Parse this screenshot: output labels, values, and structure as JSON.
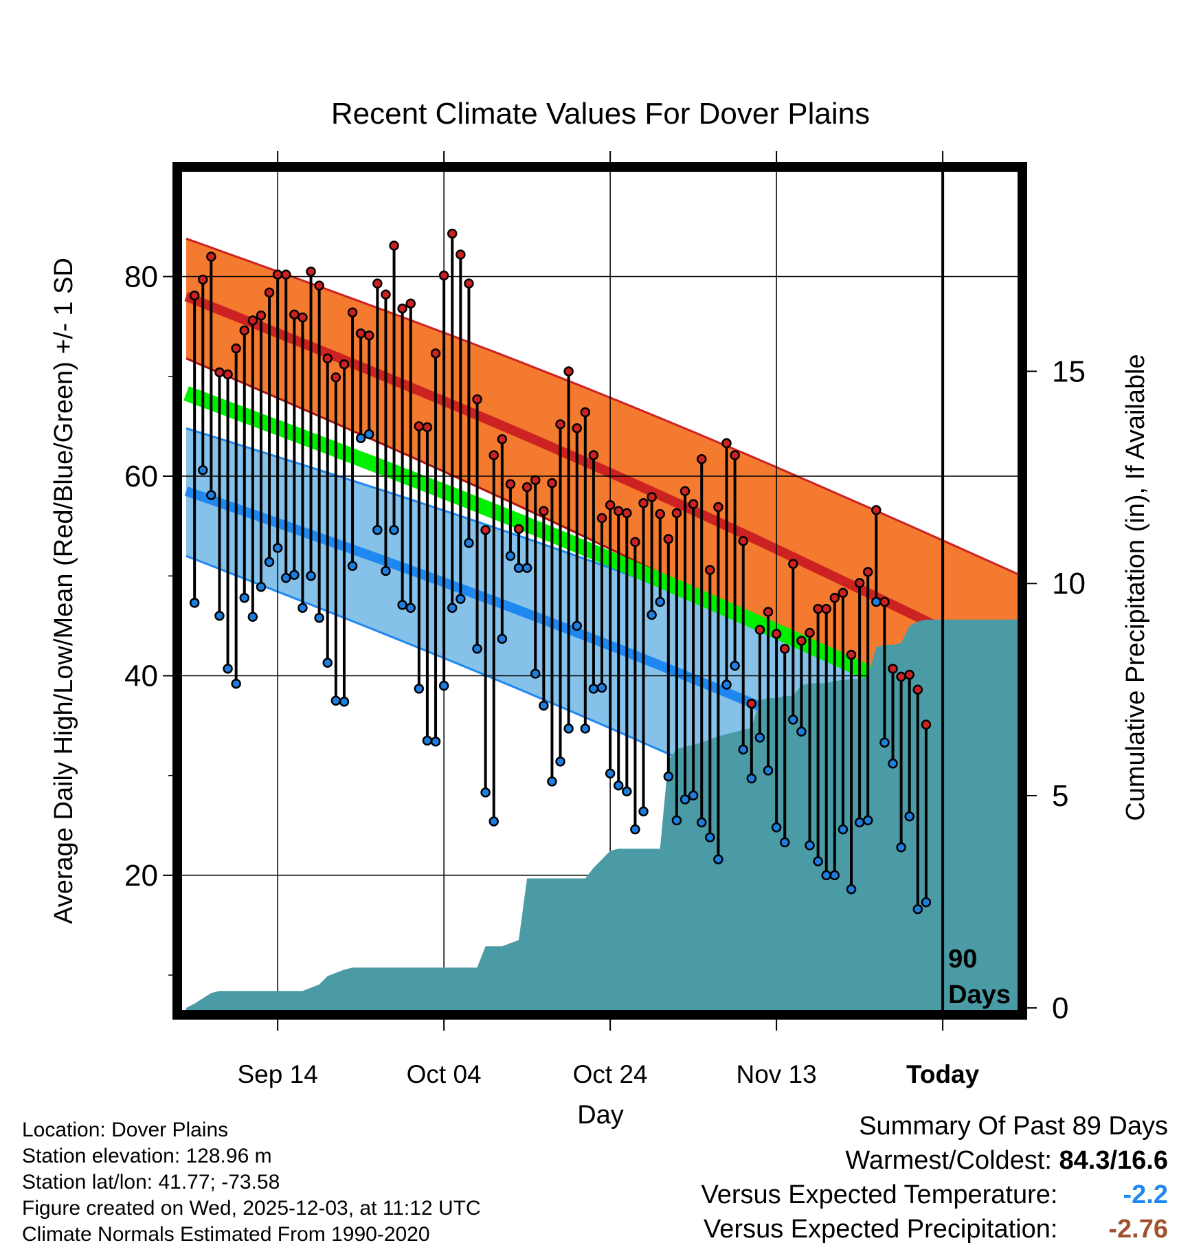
{
  "colors": {
    "high_band": "#f47a30",
    "high_band_edge": "#cc2222",
    "high_mean": "#cc2222",
    "low_band": "#85c1e8",
    "low_band_edge": "#1e88f0",
    "low_mean": "#1e88f0",
    "mean_line": "#00ee00",
    "dark_red": "#aa1111",
    "precip": "#4a9ba5",
    "high_dot": "#cc2222",
    "low_dot": "#1e7fe0"
  },
  "chart_data": {
    "type": "line",
    "title": "Recent Climate Values For Dover Plains",
    "xlabel": "Day",
    "ylabel": "Average Daily High/Low/Mean (Red/Blue/Green) +/- 1 SD",
    "y2label": "Cumulative Precipitation (in), If Available",
    "x_tick_labels": [
      "Sep 14",
      "Oct 04",
      "Oct 24",
      "Nov 13",
      "Today"
    ],
    "x_tick_days": [
      -80,
      -60,
      -40,
      -20,
      0
    ],
    "xlim": [
      -91.5,
      9.0
    ],
    "ylim": [
      6.5,
      90.5
    ],
    "y_ticks": [
      20,
      40,
      60,
      80
    ],
    "y_minor_ticks": [
      10,
      30,
      50,
      70
    ],
    "y2lim": [
      -0.05,
      19.7
    ],
    "y2_ticks": [
      0,
      5,
      10,
      15
    ],
    "today_label": "90\nDays",
    "normals": {
      "days": [
        -91,
        9
      ],
      "high_mean": [
        78.0,
        41.0
      ],
      "high_plus_sd": [
        83.8,
        50.2
      ],
      "high_minus_sd": [
        71.8,
        32.0
      ],
      "low_mean": [
        58.5,
        25.8
      ],
      "low_plus_sd": [
        64.8,
        35.0
      ],
      "low_minus_sd": [
        52.0,
        15.8
      ],
      "avg_mean": [
        68.3,
        33.4
      ]
    },
    "series": [
      {
        "name": "High",
        "days": [
          -90,
          -89,
          -88,
          -87,
          -86,
          -85,
          -84,
          -83,
          -82,
          -81,
          -80,
          -79,
          -78,
          -77,
          -76,
          -75,
          -74,
          -73,
          -72,
          -71,
          -70,
          -69,
          -68,
          -67,
          -66,
          -65,
          -64,
          -63,
          -62,
          -61,
          -60,
          -59,
          -58,
          -57,
          -56,
          -55,
          -54,
          -53,
          -52,
          -51,
          -50,
          -49,
          -48,
          -47,
          -46,
          -45,
          -44,
          -43,
          -42,
          -41,
          -40,
          -39,
          -38,
          -37,
          -36,
          -35,
          -34,
          -33,
          -32,
          -31,
          -30,
          -29,
          -28,
          -27,
          -26,
          -25,
          -24,
          -23,
          -22,
          -21,
          -20,
          -19,
          -18,
          -17,
          -16,
          -15,
          -14,
          -13,
          -12,
          -11,
          -10,
          -9,
          -8,
          -7,
          -6,
          -5,
          -4,
          -3,
          -2,
          -1
        ],
        "values": [
          78.1,
          79.7,
          82.0,
          70.4,
          70.2,
          72.8,
          74.6,
          75.6,
          76.1,
          78.4,
          80.2,
          80.2,
          76.2,
          75.9,
          80.5,
          79.1,
          71.8,
          69.9,
          71.2,
          76.4,
          74.3,
          74.1,
          79.3,
          78.2,
          83.1,
          76.8,
          77.3,
          65.0,
          64.9,
          72.3,
          80.1,
          84.3,
          82.2,
          79.3,
          67.7,
          54.6,
          62.1,
          63.7,
          59.2,
          54.7,
          58.9,
          59.6,
          56.5,
          59.3,
          65.2,
          70.5,
          64.8,
          66.4,
          62.1,
          55.8,
          57.1,
          56.5,
          56.3,
          53.4,
          57.3,
          57.9,
          56.2,
          53.7,
          56.3,
          58.5,
          57.2,
          61.7,
          50.6,
          56.9,
          63.3,
          62.1,
          53.5,
          37.2,
          44.6,
          46.4,
          44.2,
          42.7,
          51.2,
          43.5,
          44.3,
          46.7,
          46.7,
          47.8,
          48.3,
          42.1,
          49.3,
          50.4,
          56.6,
          47.4,
          40.7,
          39.9,
          40.1,
          38.6,
          35.1,
          null
        ]
      },
      {
        "name": "Low",
        "days": [
          -90,
          -89,
          -88,
          -87,
          -86,
          -85,
          -84,
          -83,
          -82,
          -81,
          -80,
          -79,
          -78,
          -77,
          -76,
          -75,
          -74,
          -73,
          -72,
          -71,
          -70,
          -69,
          -68,
          -67,
          -66,
          -65,
          -64,
          -63,
          -62,
          -61,
          -60,
          -59,
          -58,
          -57,
          -56,
          -55,
          -54,
          -53,
          -52,
          -51,
          -50,
          -49,
          -48,
          -47,
          -46,
          -45,
          -44,
          -43,
          -42,
          -41,
          -40,
          -39,
          -38,
          -37,
          -36,
          -35,
          -34,
          -33,
          -32,
          -31,
          -30,
          -29,
          -28,
          -27,
          -26,
          -25,
          -24,
          -23,
          -22,
          -21,
          -20,
          -19,
          -18,
          -17,
          -16,
          -15,
          -14,
          -13,
          -12,
          -11,
          -10,
          -9,
          -8,
          -7,
          -6,
          -5,
          -4,
          -3,
          -2,
          -1
        ],
        "values": [
          47.3,
          60.6,
          58.1,
          46.0,
          40.7,
          39.2,
          47.8,
          45.9,
          48.9,
          51.4,
          52.8,
          49.8,
          50.1,
          46.8,
          50.0,
          45.8,
          41.3,
          37.5,
          37.4,
          51.0,
          63.8,
          64.2,
          54.6,
          50.5,
          54.6,
          47.1,
          46.8,
          38.7,
          33.5,
          33.4,
          39.0,
          46.8,
          47.7,
          53.3,
          42.7,
          28.3,
          25.4,
          43.7,
          52.0,
          50.8,
          50.8,
          40.2,
          37.0,
          29.4,
          31.4,
          34.7,
          45.0,
          34.7,
          38.7,
          38.8,
          30.2,
          29.0,
          28.4,
          24.6,
          26.4,
          46.1,
          47.4,
          29.9,
          25.5,
          27.6,
          28.0,
          25.3,
          23.8,
          21.6,
          39.1,
          41.0,
          32.6,
          29.7,
          33.8,
          30.5,
          24.8,
          23.3,
          35.6,
          34.4,
          23.0,
          21.4,
          20.0,
          20.0,
          24.6,
          18.6,
          25.3,
          25.5,
          47.4,
          33.3,
          31.2,
          22.8,
          25.9,
          16.6,
          17.3,
          null
        ]
      }
    ],
    "precip": {
      "days": [
        -91,
        -90,
        -88,
        -87,
        -85,
        -77,
        -75,
        -74,
        -72,
        -71,
        -56,
        -55,
        -53,
        -51,
        -50,
        -43,
        -42,
        -41,
        -40,
        -39,
        -38,
        -34,
        -33,
        -32,
        -31,
        -30,
        -29,
        -27,
        -26,
        -24,
        -23,
        -22,
        -21,
        -20,
        -19,
        -18,
        -17,
        -16,
        -15,
        -14,
        -13,
        -11,
        -10,
        -9,
        -8,
        -7,
        -6,
        -5,
        -4,
        -3,
        -2,
        9
      ],
      "values": [
        0.0,
        0.1,
        0.35,
        0.4,
        0.4,
        0.4,
        0.55,
        0.75,
        0.9,
        0.95,
        0.95,
        1.45,
        1.45,
        1.6,
        3.05,
        3.05,
        3.3,
        3.5,
        3.7,
        3.75,
        3.75,
        3.75,
        5.85,
        6.1,
        6.15,
        6.2,
        6.25,
        6.4,
        6.45,
        6.55,
        6.6,
        7.25,
        7.3,
        7.3,
        7.35,
        7.35,
        7.6,
        7.65,
        7.65,
        7.65,
        7.7,
        7.75,
        7.75,
        7.8,
        8.5,
        8.55,
        8.55,
        8.6,
        9.0,
        9.1,
        9.15,
        9.15
      ]
    }
  },
  "footer": {
    "location": "Location: Dover Plains",
    "elevation": "Station elevation: 128.96 m",
    "latlon": "Station lat/lon: 41.77; -73.58",
    "created": "Figure created on Wed, 2025-12-03, at 11:12 UTC",
    "normals": "Climate Normals Estimated From 1990-2020"
  },
  "summary": {
    "heading": "Summary Of Past 89 Days",
    "warm_label": "Warmest/Coldest:",
    "warm_value": "84.3/16.6",
    "temp_label": "Versus Expected Temperature:",
    "temp_value": "-2.2",
    "temp_color": "#1e88f0",
    "precip_label": "Versus Expected Precipitation:",
    "precip_value": "-2.76",
    "precip_color": "#a0522d"
  }
}
